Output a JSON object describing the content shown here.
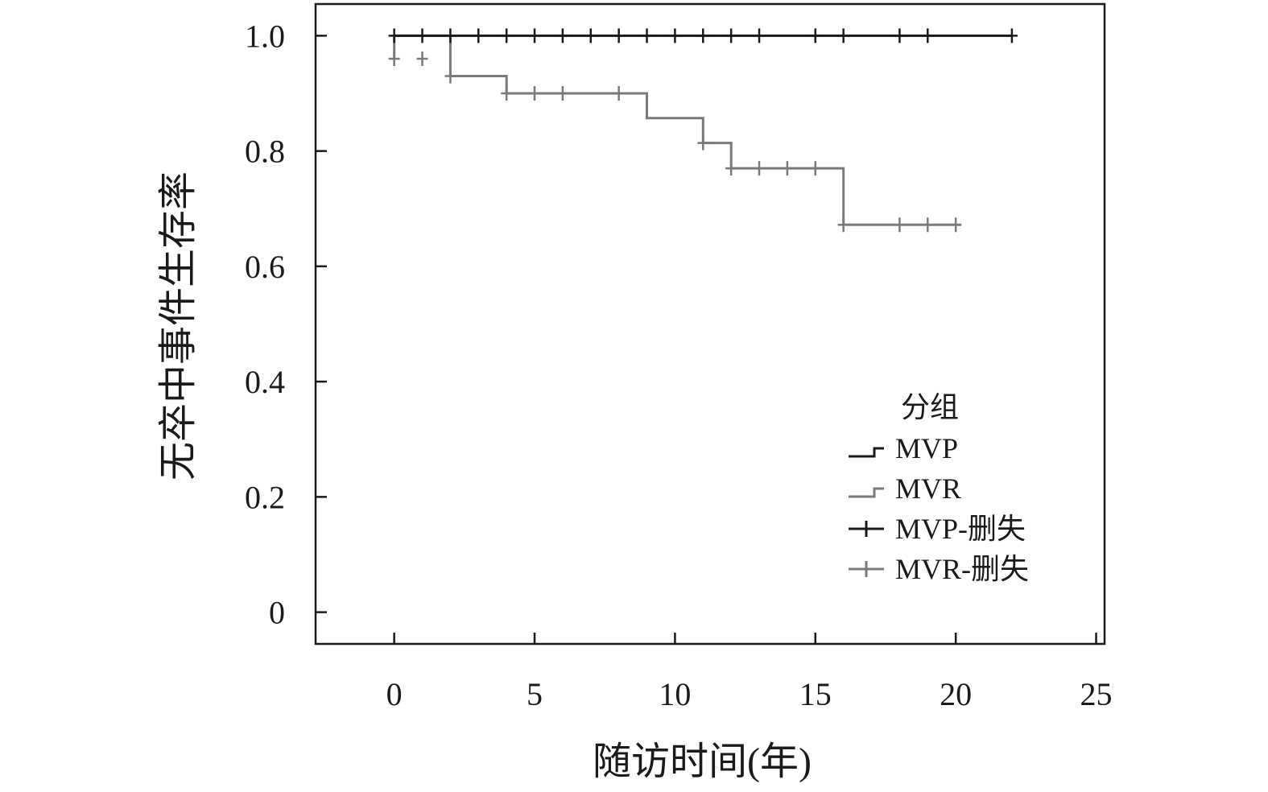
{
  "chart_data": {
    "type": "line",
    "subtype": "kaplan-meier-step",
    "xlabel": "随访时间(年)",
    "ylabel": "无卒中事件生存率",
    "xlim": [
      -2.8,
      25.3
    ],
    "ylim": [
      -0.055,
      1.055
    ],
    "x_ticks": [
      0,
      5,
      10,
      15,
      20,
      25
    ],
    "x_tick_labels": [
      "0",
      "5",
      "10",
      "15",
      "20",
      "25"
    ],
    "y_ticks": [
      0,
      0.2,
      0.4,
      0.6,
      0.8,
      1.0
    ],
    "y_tick_labels": [
      "0",
      "0.2",
      "0.4",
      "0.6",
      "0.8",
      "1.0"
    ],
    "grid": false,
    "legend": {
      "title": "分组",
      "position": "lower-right",
      "entries": [
        "MVP",
        "MVR",
        "MVP-删失",
        "MVR-删失"
      ]
    },
    "series": [
      {
        "name": "MVP",
        "color": "#1a1a1a",
        "steps": [
          [
            0,
            1.0
          ],
          [
            22,
            1.0
          ]
        ],
        "censored": [
          [
            0,
            1.0
          ],
          [
            1,
            1.0
          ],
          [
            2,
            1.0
          ],
          [
            3,
            1.0
          ],
          [
            4,
            1.0
          ],
          [
            5,
            1.0
          ],
          [
            6,
            1.0
          ],
          [
            7,
            1.0
          ],
          [
            8,
            1.0
          ],
          [
            9,
            1.0
          ],
          [
            10,
            1.0
          ],
          [
            11,
            1.0
          ],
          [
            12,
            1.0
          ],
          [
            13,
            1.0
          ],
          [
            15,
            1.0
          ],
          [
            16,
            1.0
          ],
          [
            18,
            1.0
          ],
          [
            19,
            1.0
          ],
          [
            22,
            1.0
          ]
        ]
      },
      {
        "name": "MVR",
        "color": "#7a7a7a",
        "steps": [
          [
            0,
            0.96
          ],
          [
            0,
            1.0
          ],
          [
            2,
            1.0
          ],
          [
            2,
            0.93
          ],
          [
            4,
            0.93
          ],
          [
            4,
            0.9
          ],
          [
            9,
            0.9
          ],
          [
            9,
            0.857
          ],
          [
            11,
            0.857
          ],
          [
            11,
            0.814
          ],
          [
            12,
            0.814
          ],
          [
            12,
            0.77
          ],
          [
            16,
            0.77
          ],
          [
            16,
            0.672
          ],
          [
            20.2,
            0.672
          ]
        ],
        "censored": [
          [
            0,
            0.96
          ],
          [
            1,
            0.96
          ],
          [
            2,
            0.93
          ],
          [
            4,
            0.9
          ],
          [
            5,
            0.9
          ],
          [
            6,
            0.9
          ],
          [
            8,
            0.9
          ],
          [
            11,
            0.814
          ],
          [
            12,
            0.77
          ],
          [
            13,
            0.77
          ],
          [
            14,
            0.77
          ],
          [
            15,
            0.77
          ],
          [
            16,
            0.672
          ],
          [
            18,
            0.672
          ],
          [
            19,
            0.672
          ],
          [
            20,
            0.672
          ]
        ]
      }
    ]
  }
}
